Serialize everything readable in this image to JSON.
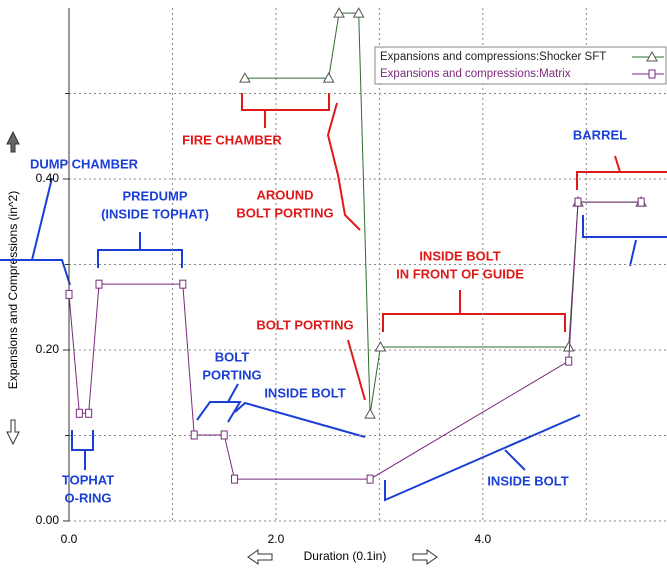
{
  "chart_data": {
    "type": "line",
    "xlabel": "Duration (0.1in)",
    "ylabel": "Expansions and Compressions (in^2)",
    "xlim": [
      0,
      5.78
    ],
    "ylim": [
      0,
      0.6
    ],
    "xticks": [
      {
        "value": 0,
        "label": "0.0"
      },
      {
        "value": 2,
        "label": "2.0"
      },
      {
        "value": 4,
        "label": "4.0"
      }
    ],
    "yticks": [
      {
        "value": 0,
        "label": "0.00"
      },
      {
        "value": 0.2,
        "label": "0.20"
      },
      {
        "value": 0.4,
        "label": "0.40"
      }
    ],
    "xgrid": [
      1,
      3,
      5
    ],
    "ygrid": [
      0.1,
      0.3,
      0.5
    ],
    "grid": true,
    "legend": "upper right",
    "series": [
      {
        "name": "Expansions and compressions:Shocker SFT",
        "color": "#2f6b2f",
        "marker": "triangle",
        "x": [
          1.7,
          2.51,
          2.61,
          2.8,
          2.91,
          3.01,
          4.83,
          4.92,
          5.53
        ],
        "values": [
          0.518,
          0.518,
          0.594,
          0.594,
          0.125,
          0.2035,
          0.2035,
          0.373,
          0.373
        ]
      },
      {
        "name": "Expansions and compressions:Matrix",
        "color": "#7b2a7b",
        "marker": "square",
        "x": [
          0.0,
          0.1,
          0.19,
          0.29,
          1.1,
          1.21,
          1.5,
          1.6,
          2.91,
          4.83,
          4.92,
          5.53
        ],
        "values": [
          0.265,
          0.126,
          0.126,
          0.277,
          0.277,
          0.1006,
          0.1006,
          0.049,
          0.049,
          0.187,
          0.373,
          0.373
        ]
      }
    ],
    "annotations": [
      {
        "lines": [
          "DUMP CHAMBER"
        ],
        "color": "#1a3fd6"
      },
      {
        "lines": [
          "PREDUMP",
          "(INSIDE TOPHAT)"
        ],
        "color": "#1a3fd6"
      },
      {
        "lines": [
          "FIRE CHAMBER"
        ],
        "color": "#e01818"
      },
      {
        "lines": [
          "AROUND",
          "BOLT PORTING"
        ],
        "color": "#e01818"
      },
      {
        "lines": [
          "BARREL"
        ],
        "color": "#1a3fd6"
      },
      {
        "lines": [
          "INSIDE BOLT",
          "IN FRONT OF GUIDE"
        ],
        "color": "#e01818"
      },
      {
        "lines": [
          "BOLT PORTING"
        ],
        "color": "#e01818"
      },
      {
        "lines": [
          "BOLT",
          "PORTING"
        ],
        "color": "#1a3fd6"
      },
      {
        "lines": [
          "INSIDE BOLT"
        ],
        "color": "#1a3fd6"
      },
      {
        "lines": [
          "TOPHAT",
          "O-RING"
        ],
        "color": "#1a3fd6"
      },
      {
        "lines": [
          "INSIDE BOLT"
        ],
        "color": "#1a3fd6"
      }
    ]
  }
}
